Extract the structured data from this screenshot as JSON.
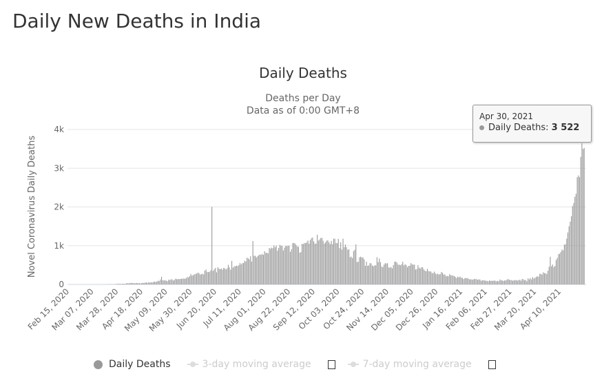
{
  "page_title": "Daily New Deaths in India",
  "tooltip": {
    "date": "Apr 30, 2021",
    "series": "Daily Deaths:",
    "value": "3 522"
  },
  "legend": [
    {
      "label": "Daily Deaths",
      "active": true
    },
    {
      "label": "3-day moving average",
      "active": false
    },
    {
      "label": "7-day moving average",
      "active": false
    }
  ],
  "chart_data": {
    "type": "bar",
    "title": "Daily Deaths",
    "subtitle": [
      "Deaths per Day",
      "Data as of 0:00 GMT+8"
    ],
    "ylabel": "Novel Coronavirus Daily Deaths",
    "xlabel": "",
    "x_start": "2020-02-15",
    "x_end": "2021-04-30",
    "ylim": [
      0,
      4000
    ],
    "yticks": [
      "0",
      "1k",
      "2k",
      "3k",
      "4k"
    ],
    "xticks": [
      "Feb 15, 2020",
      "Mar 07, 2020",
      "Mar 28, 2020",
      "Apr 18, 2020",
      "May 09, 2020",
      "May 30, 2020",
      "Jun 20, 2020",
      "Jul 11, 2020",
      "Aug 01, 2020",
      "Aug 22, 2020",
      "Sep 12, 2020",
      "Oct 03, 2020",
      "Oct 24, 2020",
      "Nov 14, 2020",
      "Dec 05, 2020",
      "Dec 26, 2020",
      "Jan 16, 2021",
      "Feb 06, 2021",
      "Feb 27, 2021",
      "Mar 20, 2021",
      "Apr 10, 2021"
    ],
    "grid": true,
    "legend_position": "bottom",
    "bar_color": "#999999",
    "series": [
      {
        "name": "Daily Deaths",
        "values": [
          0,
          0,
          0,
          0,
          0,
          0,
          0,
          0,
          0,
          0,
          0,
          0,
          0,
          0,
          0,
          0,
          0,
          0,
          0,
          0,
          0,
          0,
          0,
          0,
          0,
          1,
          0,
          1,
          0,
          1,
          2,
          1,
          0,
          3,
          4,
          3,
          5,
          6,
          4,
          5,
          7,
          8,
          19,
          12,
          15,
          18,
          12,
          20,
          18,
          17,
          27,
          33,
          26,
          38,
          35,
          40,
          32,
          28,
          35,
          40,
          26,
          37,
          23,
          36,
          43,
          36,
          49,
          51,
          41,
          60,
          47,
          56,
          51,
          62,
          73,
          66,
          75,
          95,
          87,
          127,
          198,
          106,
          102,
          112,
          97,
          81,
          124,
          111,
          133,
          129,
          100,
          120,
          149,
          135,
          138,
          139,
          141,
          145,
          150,
          152,
          146,
          164,
          190,
          182,
          215,
          269,
          227,
          242,
          259,
          272,
          281,
          303,
          294,
          253,
          266,
          275,
          261,
          356,
          386,
          323,
          319,
          328,
          364,
          2003,
          351,
          388,
          426,
          314,
          443,
          410,
          392,
          414,
          381,
          425,
          418,
          387,
          417,
          507,
          442,
          380,
          608,
          433,
          465,
          472,
          485,
          474,
          499,
          553,
          518,
          549,
          552,
          611,
          592,
          691,
          673,
          647,
          727,
          591,
          1122,
          741,
          739,
          697,
          727,
          755,
          771,
          766,
          787,
          765,
          857,
          813,
          819,
          801,
          942,
          919,
          950,
          936,
          1009,
          961,
          1001,
          871,
          939,
          1022,
          1000,
          997,
          878,
          950,
          997,
          987,
          1004,
          997,
          842,
          909,
          1065,
          1072,
          1056,
          1017,
          980,
          971,
          818,
          837,
          1048,
          1043,
          1069,
          1065,
          1089,
          1133,
          1050,
          1145,
          1194,
          1210,
          1110,
          1050,
          1056,
          1283,
          1131,
          1161,
          1200,
          1204,
          1130,
          1053,
          1085,
          1129,
          1141,
          1089,
          1039,
          1124,
          1039,
          1181,
          1179,
          1067,
          1069,
          1175,
          940,
          1089,
          900,
          1181,
          962,
          1033,
          964,
          895,
          909,
          703,
          718,
          680,
          860,
          894,
          1033,
          579,
          587,
          700,
          717,
          694,
          702,
          650,
          480,
          587,
          480,
          490,
          551,
          543,
          489,
          470,
          495,
          490,
          703,
          577,
          670,
          577,
          463,
          448,
          512,
          548,
          542,
          547,
          437,
          435,
          450,
          414,
          501,
          585,
          592,
          564,
          510,
          511,
          495,
          523,
          586,
          492,
          524,
          501,
          443,
          480,
          482,
          550,
          519,
          510,
          512,
          384,
          398,
          499,
          432,
          411,
          445,
          441,
          387,
          355,
          339,
          402,
          347,
          337,
          334,
          293,
          295,
          331,
          282,
          261,
          279,
          256,
          267,
          322,
          299,
          255,
          256,
          216,
          217,
          214,
          266,
          237,
          234,
          226,
          218,
          191,
          167,
          201,
          185,
          201,
          175,
          169,
          137,
          164,
          164,
          160,
          151,
          131,
          135,
          127,
          124,
          146,
          137,
          137,
          120,
          129,
          127,
          94,
          107,
          107,
          104,
          94,
          95,
          80,
          104,
          94,
          94,
          93,
          100,
          96,
          79,
          94,
          84,
          129,
          108,
          102,
          92,
          104,
          102,
          125,
          140,
          118,
          113,
          113,
          96,
          106,
          113,
          112,
          98,
          116,
          117,
          98,
          142,
          133,
          106,
          120,
          81,
          159,
          131,
          165,
          131,
          188,
          154,
          171,
          197,
          211,
          199,
          272,
          275,
          253,
          312,
          291,
          291,
          271,
          354,
          459,
          714,
          470,
          513,
          445,
          478,
          630,
          684,
          780,
          794,
          838,
          903,
          879,
          1027,
          1038,
          1183,
          1341,
          1501,
          1620,
          1761,
          2023,
          2104,
          2263,
          2341,
          2767,
          2812,
          2771,
          3293,
          3645,
          3498,
          3522
        ]
      }
    ]
  }
}
